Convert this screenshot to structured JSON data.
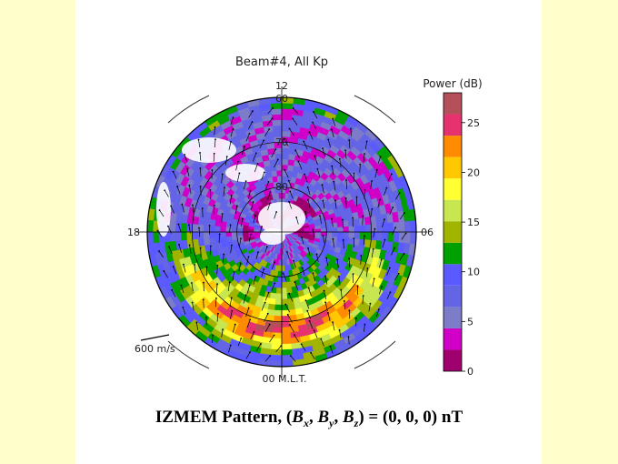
{
  "chart_data": {
    "type": "heatmap",
    "title": "Beam#4, All Kp",
    "projection": "polar MLT / magnetic latitude",
    "mlt_labels": {
      "top": "12",
      "left": "18",
      "right": "06",
      "bottom": "00 M.L.T."
    },
    "latitude_labels": [
      "60",
      "70",
      "80"
    ],
    "latitude_range": [
      60,
      90
    ],
    "vector_scale_label": "600 m/s",
    "colorbar": {
      "label": "Power (dB)",
      "ticks": [
        "25",
        "20",
        "15",
        "10",
        "5",
        "0"
      ],
      "range": [
        0,
        28
      ],
      "colors": [
        "#a0006e",
        "#d000c8",
        "#7c7cc8",
        "#6464e6",
        "#5a5aff",
        "#00a000",
        "#a0b400",
        "#c8e650",
        "#ffff32",
        "#ffc800",
        "#ff8c00",
        "#e6326e",
        "#b4505a"
      ]
    }
  },
  "caption": {
    "prefix": "IZMEM Pattern, (",
    "bx": "B",
    "bx_sub": "x",
    "sep1": ", ",
    "by": "B",
    "by_sub": "y",
    "sep2": ", ",
    "bz": "B",
    "bz_sub": "z",
    "suffix": ") = (0, 0, 0) nT"
  }
}
